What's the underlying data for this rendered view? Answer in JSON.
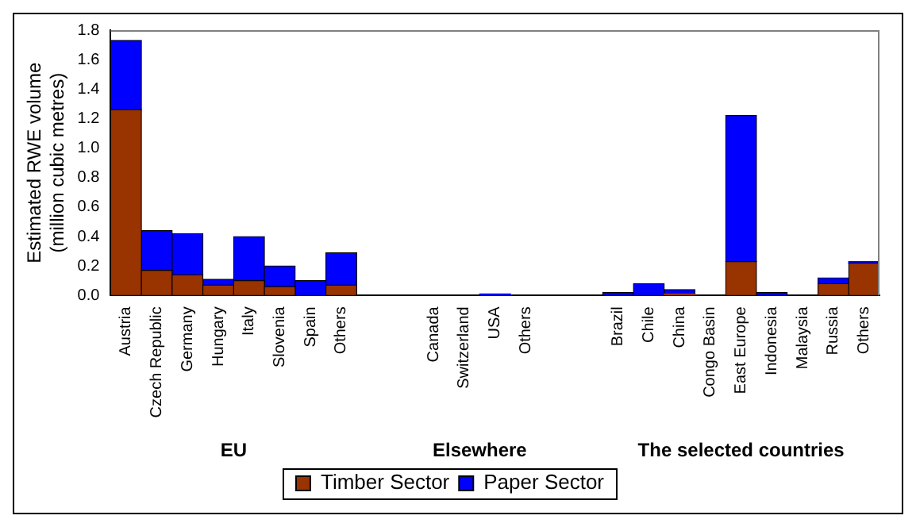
{
  "chart_data": {
    "type": "bar",
    "stacked": true,
    "ylabel": "Estimated RWE volume\n(million cubic metres)",
    "categories": [
      "Austria",
      "Czech Republic",
      "Germany",
      "Hungary",
      "Italy",
      "Slovenia",
      "Spain",
      "Others",
      null,
      null,
      "Canada",
      "Switzerland",
      "USA",
      "Others",
      null,
      null,
      "Brazil",
      "Chile",
      "China",
      "Congo Basin",
      "East Europe",
      "Indonesia",
      "Malaysia",
      "Russia",
      "Others"
    ],
    "series": [
      {
        "name": "Timber Sector",
        "color": "#993300",
        "values": [
          1.26,
          0.17,
          0.14,
          0.07,
          0.1,
          0.06,
          0,
          0.07,
          null,
          null,
          0,
          0,
          0,
          0,
          null,
          null,
          0,
          0,
          0.01,
          0,
          0.23,
          0,
          0,
          0.08,
          0.22
        ]
      },
      {
        "name": "Paper Sector",
        "color": "#0000ff",
        "values": [
          0.47,
          0.27,
          0.28,
          0.04,
          0.3,
          0.14,
          0.1,
          0.22,
          null,
          null,
          0,
          0,
          0.01,
          0,
          null,
          null,
          0.02,
          0.08,
          0.03,
          0,
          0.99,
          0.02,
          0,
          0.04,
          0.01
        ]
      }
    ],
    "ylim": [
      0,
      1.8
    ],
    "yticks": [
      {
        "value": 0,
        "label": "0.0"
      },
      {
        "value": 0.2,
        "label": "0.2"
      },
      {
        "value": 0.4,
        "label": "0.4"
      },
      {
        "value": 0.6,
        "label": "0.6"
      },
      {
        "value": 0.8,
        "label": "0.8"
      },
      {
        "value": 1,
        "label": "1.0"
      },
      {
        "value": 1.2,
        "label": "1.2"
      },
      {
        "value": 1.4,
        "label": "1.4"
      },
      {
        "value": 1.6,
        "label": "1.6"
      },
      {
        "value": 1.8,
        "label": "1.8"
      }
    ],
    "annotations": [
      "EU",
      "Elsewhere",
      "The selected countries"
    ],
    "grid": false,
    "legend": "bottom"
  }
}
